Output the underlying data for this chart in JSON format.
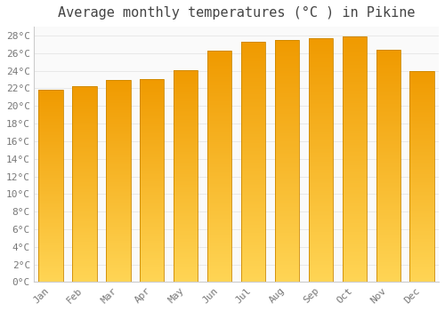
{
  "title": "Average monthly temperatures (°C ) in Pikine",
  "months": [
    "Jan",
    "Feb",
    "Mar",
    "Apr",
    "May",
    "Jun",
    "Jul",
    "Aug",
    "Sep",
    "Oct",
    "Nov",
    "Dec"
  ],
  "temperatures": [
    21.8,
    22.2,
    23.0,
    23.1,
    24.1,
    26.3,
    27.3,
    27.5,
    27.7,
    27.9,
    26.4,
    24.0
  ],
  "bar_color_top": "#F5A000",
  "bar_color_bottom": "#FFD555",
  "background_color": "#FFFFFF",
  "plot_bg_color": "#FAFAFA",
  "grid_color": "#E8E8E8",
  "text_color": "#777777",
  "title_color": "#444444",
  "ylim": [
    0,
    29
  ],
  "yticks": [
    0,
    2,
    4,
    6,
    8,
    10,
    12,
    14,
    16,
    18,
    20,
    22,
    24,
    26,
    28
  ],
  "ytick_labels": [
    "0°C",
    "2°C",
    "4°C",
    "6°C",
    "8°C",
    "10°C",
    "12°C",
    "14°C",
    "16°C",
    "18°C",
    "20°C",
    "22°C",
    "24°C",
    "26°C",
    "28°C"
  ],
  "title_fontsize": 11,
  "tick_fontsize": 8,
  "figsize": [
    5.0,
    3.5
  ],
  "dpi": 100
}
